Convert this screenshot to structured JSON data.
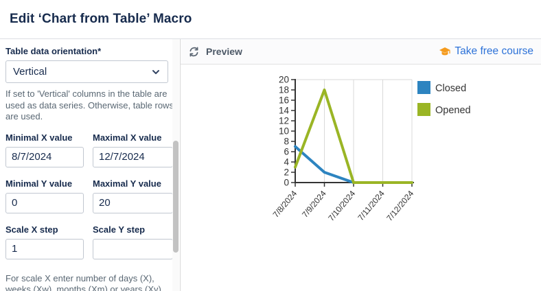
{
  "title": "Edit ‘Chart from Table’ Macro",
  "sidebar": {
    "orientation": {
      "label": "Table data orientation*",
      "value": "Vertical",
      "help": "If set to 'Vertical' columns in the table are used as data series. Otherwise, table rows are used."
    },
    "fields": [
      {
        "label": "Minimal X value",
        "value": "8/7/2024"
      },
      {
        "label": "Maximal X value",
        "value": "12/7/2024"
      },
      {
        "label": "Minimal Y value",
        "value": "0"
      },
      {
        "label": "Maximal Y value",
        "value": "20"
      },
      {
        "label": "Scale X step",
        "value": "1"
      },
      {
        "label": "Scale Y step",
        "value": ""
      }
    ],
    "scale_help": "For scale X enter number of days (X), weeks (Xw), months (Xm) or years (Xy)"
  },
  "preview": {
    "label": "Preview",
    "course_link": "Take free course"
  },
  "chart_data": {
    "type": "line",
    "x": [
      "7/8/2024",
      "7/9/2024",
      "7/10/2024",
      "7/11/2024",
      "7/12/2024"
    ],
    "series": [
      {
        "name": "Closed",
        "color": "#2d84c0",
        "values": [
          7,
          2,
          0,
          0,
          0
        ]
      },
      {
        "name": "Opened",
        "color": "#9ab525",
        "values": [
          3,
          18,
          0,
          0,
          0
        ]
      }
    ],
    "ylim": [
      0,
      20
    ],
    "ytick_step": 2,
    "grid": true,
    "legend_position": "right"
  },
  "colors": {
    "title_navy": "#172b4d",
    "help_gray": "#596773",
    "link_blue": "#2d72d8",
    "cap_orange": "#f59b1e",
    "axis": "#333333",
    "gridline": "#d9d9d9",
    "border": "#c1c7d0"
  }
}
